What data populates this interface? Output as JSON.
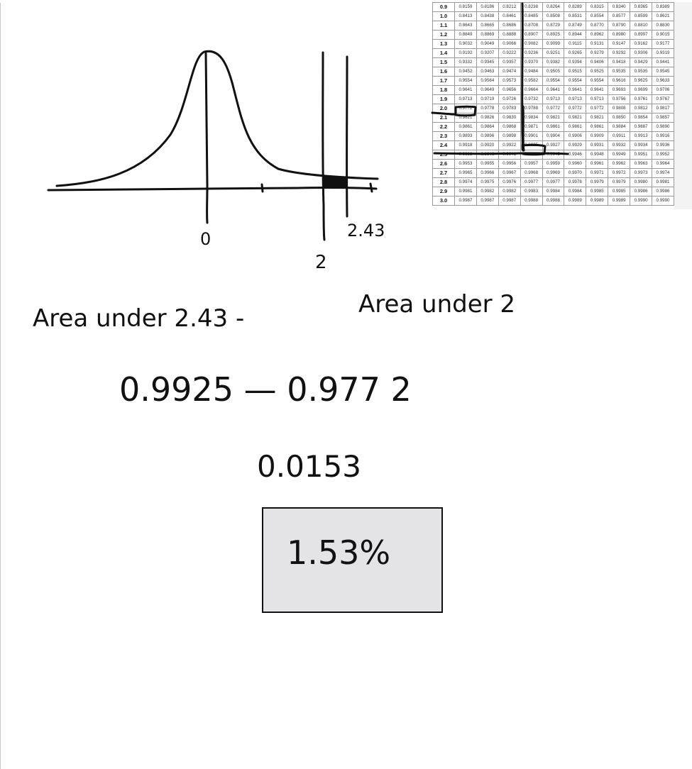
{
  "graph": {
    "label_zero": "0",
    "label_two": "2",
    "label_243": "2.43"
  },
  "work": {
    "line1_left": "Area under 2.43 -",
    "line1_right": "Area under 2",
    "line2": "0.9925 — 0.977 2",
    "line3": "0.0153",
    "answer": "1.53%"
  },
  "z_table": {
    "rows": [
      {
        "z": "0.9",
        "values": [
          "0.8159",
          "0.8186",
          "0.8212",
          "0.8238",
          "0.8264",
          "0.8289",
          "0.8315",
          "0.8340",
          "0.8365",
          "0.8389"
        ]
      },
      {
        "z": "1.0",
        "values": [
          "0.8413",
          "0.8438",
          "0.8461",
          "0.8485",
          "0.8508",
          "0.8531",
          "0.8554",
          "0.8577",
          "0.8599",
          "0.8621"
        ]
      },
      {
        "z": "1.1",
        "values": [
          "0.8643",
          "0.8665",
          "0.8686",
          "0.8708",
          "0.8729",
          "0.8749",
          "0.8770",
          "0.8790",
          "0.8810",
          "0.8830"
        ]
      },
      {
        "z": "1.2",
        "values": [
          "0.8849",
          "0.8869",
          "0.8888",
          "0.8907",
          "0.8925",
          "0.8944",
          "0.8962",
          "0.8980",
          "0.8997",
          "0.9015"
        ]
      },
      {
        "z": "1.3",
        "values": [
          "0.9032",
          "0.9049",
          "0.9066",
          "0.9082",
          "0.9099",
          "0.9115",
          "0.9131",
          "0.9147",
          "0.9162",
          "0.9177"
        ]
      },
      {
        "z": "1.4",
        "values": [
          "0.9192",
          "0.9207",
          "0.9222",
          "0.9236",
          "0.9251",
          "0.9265",
          "0.9279",
          "0.9292",
          "0.9306",
          "0.9319"
        ]
      },
      {
        "z": "1.5",
        "values": [
          "0.9332",
          "0.9345",
          "0.9357",
          "0.9370",
          "0.9382",
          "0.9394",
          "0.9406",
          "0.9418",
          "0.9429",
          "0.9441"
        ]
      },
      {
        "z": "1.6",
        "values": [
          "0.9452",
          "0.9463",
          "0.9474",
          "0.9484",
          "0.9505",
          "0.9515",
          "0.9525",
          "0.9535",
          "0.9535",
          "0.9545"
        ]
      },
      {
        "z": "1.7",
        "values": [
          "0.9554",
          "0.9564",
          "0.9573",
          "0.9582",
          "0.9554",
          "0.9554",
          "0.9554",
          "0.9616",
          "0.9625",
          "0.9633"
        ]
      },
      {
        "z": "1.8",
        "values": [
          "0.9641",
          "0.9649",
          "0.9656",
          "0.9664",
          "0.9641",
          "0.9641",
          "0.9641",
          "0.9693",
          "0.9699",
          "0.9706"
        ]
      },
      {
        "z": "1.9",
        "values": [
          "0.9713",
          "0.9719",
          "0.9726",
          "0.9732",
          "0.9713",
          "0.9713",
          "0.9713",
          "0.9756",
          "0.9761",
          "0.9767"
        ]
      },
      {
        "z": "2.0",
        "values": [
          "0.9772",
          "0.9778",
          "0.9783",
          "0.9788",
          "0.9772",
          "0.9772",
          "0.9772",
          "0.9808",
          "0.9812",
          "0.9817"
        ]
      },
      {
        "z": "2.1",
        "values": [
          "0.9821",
          "0.9826",
          "0.9830",
          "0.9834",
          "0.9821",
          "0.9821",
          "0.9821",
          "0.9850",
          "0.9854",
          "0.9857"
        ]
      },
      {
        "z": "2.2",
        "values": [
          "0.9861",
          "0.9864",
          "0.9868",
          "0.9871",
          "0.9861",
          "0.9861",
          "0.9861",
          "0.9884",
          "0.9887",
          "0.9890"
        ]
      },
      {
        "z": "2.3",
        "values": [
          "0.9893",
          "0.9896",
          "0.9898",
          "0.9901",
          "0.9904",
          "0.9906",
          "0.9909",
          "0.9911",
          "0.9913",
          "0.9916"
        ]
      },
      {
        "z": "2.4",
        "values": [
          "0.9918",
          "0.9920",
          "0.9922",
          "0.9925",
          "0.9927",
          "0.9929",
          "0.9931",
          "0.9932",
          "0.9934",
          "0.9936"
        ]
      },
      {
        "z": "2.5",
        "values": [
          "0.9938",
          "0.9940",
          "0.9941",
          "0.9943",
          "0.9945",
          "0.9946",
          "0.9948",
          "0.9949",
          "0.9951",
          "0.9952"
        ]
      },
      {
        "z": "2.6",
        "values": [
          "0.9953",
          "0.9955",
          "0.9956",
          "0.9957",
          "0.9959",
          "0.9960",
          "0.9961",
          "0.9962",
          "0.9963",
          "0.9964"
        ]
      },
      {
        "z": "2.7",
        "values": [
          "0.9965",
          "0.9966",
          "0.9967",
          "0.9968",
          "0.9969",
          "0.9970",
          "0.9971",
          "0.9972",
          "0.9973",
          "0.9974"
        ]
      },
      {
        "z": "2.8",
        "values": [
          "0.9974",
          "0.9975",
          "0.9976",
          "0.9977",
          "0.9977",
          "0.9978",
          "0.9979",
          "0.9979",
          "0.9980",
          "0.9981"
        ]
      },
      {
        "z": "2.9",
        "values": [
          "0.9981",
          "0.9982",
          "0.9982",
          "0.9983",
          "0.9984",
          "0.9984",
          "0.9985",
          "0.9985",
          "0.9986",
          "0.9986"
        ]
      },
      {
        "z": "3.0",
        "values": [
          "0.9987",
          "0.9987",
          "0.9987",
          "0.9988",
          "0.9988",
          "0.9989",
          "0.9989",
          "0.9989",
          "0.9990",
          "0.9990"
        ]
      }
    ]
  }
}
